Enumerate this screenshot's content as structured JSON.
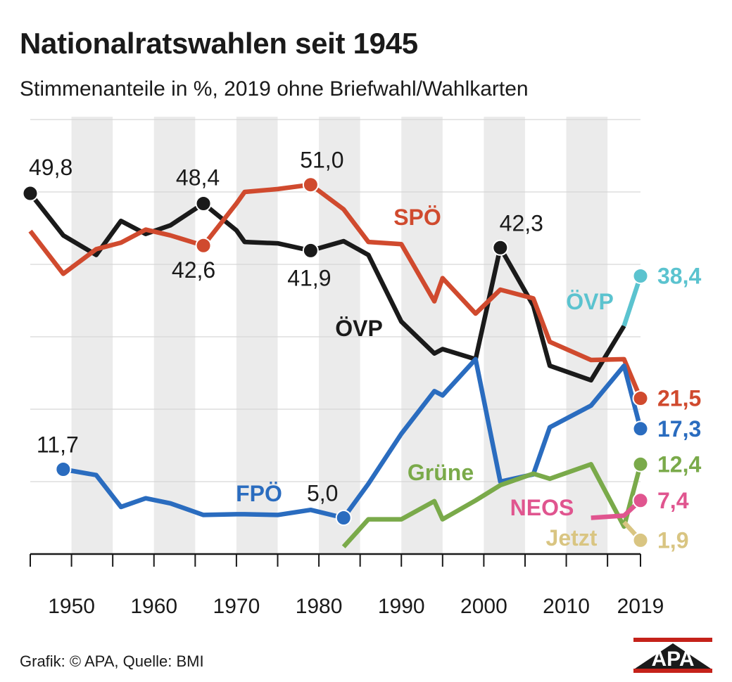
{
  "title": "Nationalratswahlen seit 1945",
  "subtitle": "Stimmenanteile in %, 2019 ohne Briefwahl/Wahlkarten",
  "footer": "Grafik: © APA, Quelle: BMI",
  "logo_text": "APA",
  "chart_data": {
    "type": "line",
    "title": "Nationalratswahlen seit 1945",
    "subtitle": "Stimmenanteile in %, 2019 ohne Briefwahl/Wahlkarten",
    "xlabel": "",
    "ylabel": "",
    "xlim": [
      1945,
      2019
    ],
    "ylim": [
      0,
      60
    ],
    "x_tick_labels": [
      "1950",
      "1960",
      "1970",
      "1980",
      "1990",
      "2000",
      "2010",
      "2019"
    ],
    "x_ticks": [
      1945,
      1950,
      1955,
      1960,
      1965,
      1970,
      1975,
      1980,
      1985,
      1990,
      1995,
      2000,
      2005,
      2010,
      2015,
      2019
    ],
    "y_gridlines": [
      10,
      20,
      30,
      40,
      50,
      60
    ],
    "grid": "horizontal gridlines, alternating vertical bands",
    "legend": "inline labels",
    "series": [
      {
        "name": "ÖVP",
        "color": "#1a1a1a",
        "x": [
          1945,
          1949,
          1953,
          1956,
          1959,
          1962,
          1966,
          1970,
          1971,
          1975,
          1979,
          1983,
          1986,
          1990,
          1994,
          1995,
          1999,
          2002,
          2006,
          2008,
          2013,
          2017
        ],
        "y": [
          49.8,
          44.0,
          41.3,
          46.0,
          44.2,
          45.4,
          48.4,
          44.7,
          43.1,
          42.9,
          41.9,
          43.2,
          41.3,
          32.1,
          27.7,
          28.3,
          26.9,
          42.3,
          34.3,
          26.0,
          24.0,
          31.5
        ],
        "labels": [
          {
            "text": "49,8",
            "x": 1945,
            "y": 49.8
          },
          {
            "text": "48,4",
            "x": 1966,
            "y": 48.4
          },
          {
            "text": "41,9",
            "x": 1979,
            "y": 41.9
          },
          {
            "text": "42,3",
            "x": 2002,
            "y": 42.3
          }
        ],
        "series_label": "ÖVP"
      },
      {
        "name": "SPÖ",
        "color": "#d04a2e",
        "x": [
          1945,
          1949,
          1953,
          1956,
          1959,
          1962,
          1966,
          1970,
          1971,
          1975,
          1979,
          1983,
          1986,
          1990,
          1994,
          1995,
          1999,
          2002,
          2006,
          2008,
          2013,
          2017,
          2019
        ],
        "y": [
          44.6,
          38.7,
          42.1,
          43.0,
          44.8,
          44.0,
          42.6,
          48.4,
          50.0,
          50.4,
          51.0,
          47.6,
          43.1,
          42.8,
          34.9,
          38.1,
          33.2,
          36.5,
          35.3,
          29.3,
          26.8,
          26.9,
          21.5
        ],
        "labels": [
          {
            "text": "42,6",
            "x": 1966,
            "y": 42.6
          },
          {
            "text": "51,0",
            "x": 1979,
            "y": 51.0
          },
          {
            "text": "21,5",
            "x": 2019,
            "y": 21.5
          }
        ],
        "series_label": "SPÖ"
      },
      {
        "name": "FPÖ",
        "color": "#2a6cbf",
        "x": [
          1949,
          1953,
          1956,
          1959,
          1962,
          1966,
          1970,
          1971,
          1975,
          1979,
          1983,
          1986,
          1990,
          1994,
          1995,
          1999,
          2002,
          2006,
          2008,
          2013,
          2017,
          2019
        ],
        "y": [
          11.7,
          10.9,
          6.5,
          7.7,
          7.0,
          5.4,
          5.5,
          5.5,
          5.4,
          6.1,
          5.0,
          9.7,
          16.6,
          22.5,
          21.9,
          26.9,
          10.0,
          11.0,
          17.5,
          20.5,
          26.0,
          17.3
        ],
        "labels": [
          {
            "text": "11,7",
            "x": 1949,
            "y": 11.7
          },
          {
            "text": "5,0",
            "x": 1983,
            "y": 5.0
          },
          {
            "text": "17,3",
            "x": 2019,
            "y": 17.3
          }
        ],
        "series_label": "FPÖ"
      },
      {
        "name": "Grüne",
        "color": "#7aaa4a",
        "x": [
          1986,
          1990,
          1994,
          1995,
          1999,
          2002,
          2006,
          2008,
          2013,
          2017,
          2019
        ],
        "y": [
          4.8,
          4.8,
          7.3,
          4.8,
          7.4,
          9.5,
          11.1,
          10.4,
          12.4,
          3.8,
          12.4
        ],
        "x_prefix": [
          1983
        ],
        "y_prefix": [
          1.0
        ],
        "labels": [
          {
            "text": "12,4",
            "x": 2019,
            "y": 12.4
          }
        ],
        "series_label": "Grüne"
      },
      {
        "name": "ÖVP",
        "color": "#5bc3cf",
        "x": [
          2017,
          2019
        ],
        "y": [
          31.5,
          38.4
        ],
        "labels": [
          {
            "text": "38,4",
            "x": 2019,
            "y": 38.4
          }
        ],
        "series_label": "ÖVP"
      },
      {
        "name": "NEOS",
        "color": "#e0558f",
        "x": [
          2013,
          2017,
          2019
        ],
        "y": [
          5.0,
          5.3,
          7.4
        ],
        "labels": [
          {
            "text": "7,4",
            "x": 2019,
            "y": 7.4
          }
        ],
        "series_label": "NEOS"
      },
      {
        "name": "Jetzt",
        "color": "#d9c582",
        "x": [
          2017,
          2019
        ],
        "y": [
          4.4,
          1.9
        ],
        "labels": [
          {
            "text": "1,9",
            "x": 2019,
            "y": 1.9
          }
        ],
        "series_label": "Jetzt"
      }
    ]
  }
}
